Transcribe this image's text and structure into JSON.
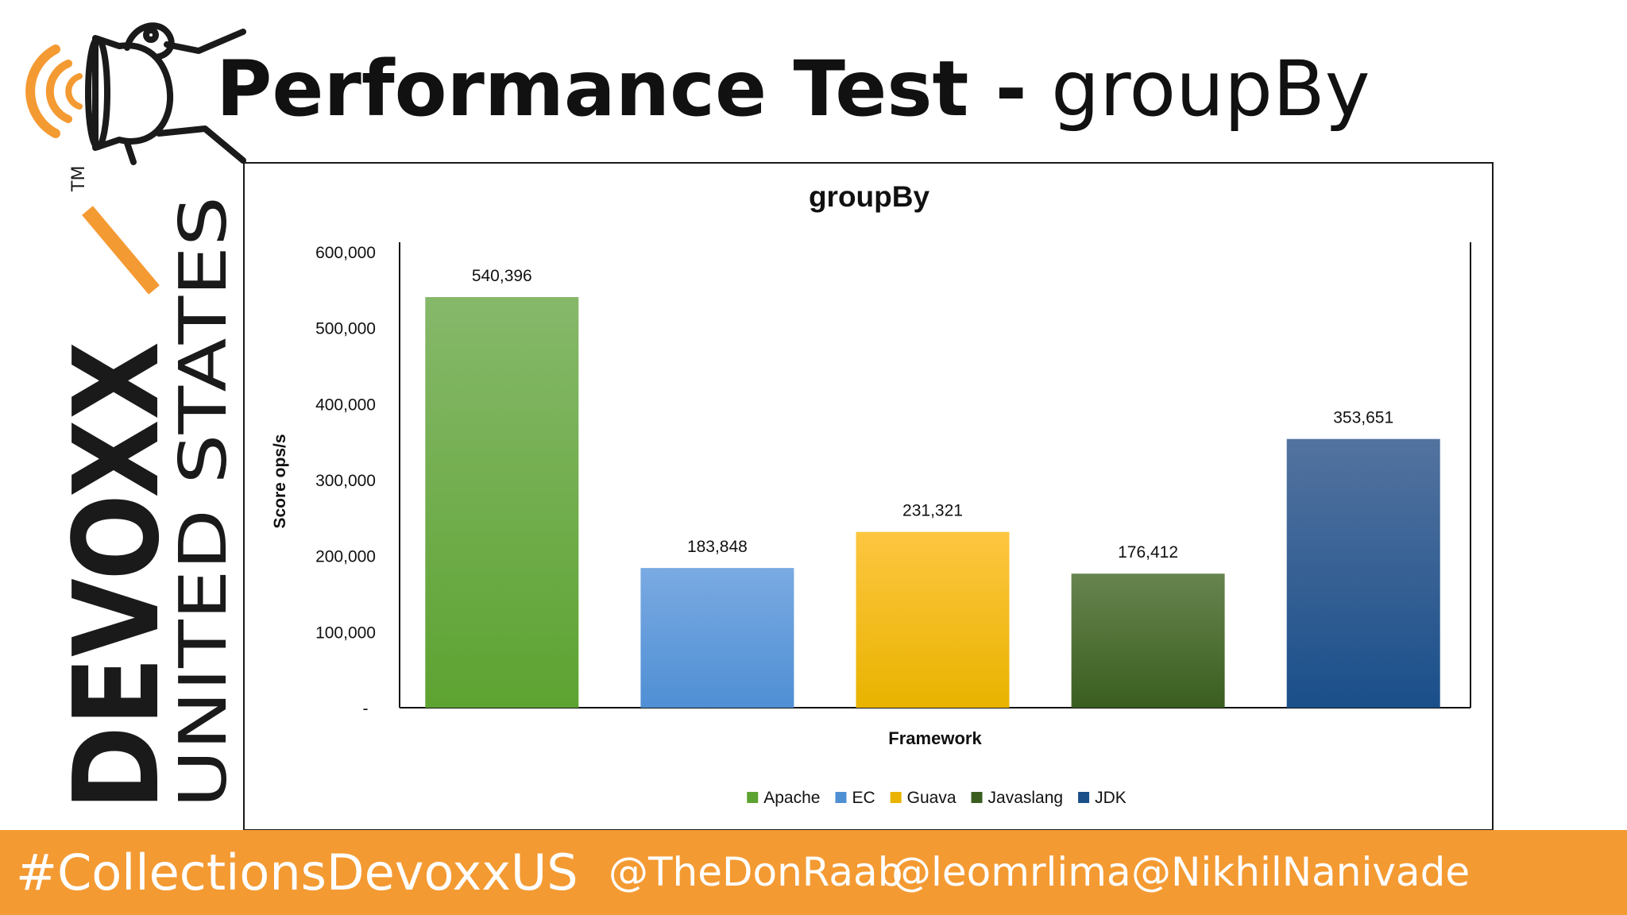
{
  "slide": {
    "title_bold": "Performance Test -",
    "title_regular": " groupBy"
  },
  "branding": {
    "vertical_large": "DEVOXX",
    "vertical_small": "UNITED STATES",
    "trademark": "TM",
    "brand_orange": "#f49a32",
    "brand_dark": "#1a1a1a"
  },
  "footer": {
    "hashtag": "#CollectionsDevoxxUS",
    "handles": [
      "@TheDonRaab",
      "@leomrlima",
      "@NikhilNanivade"
    ]
  },
  "chart_data": {
    "type": "bar",
    "title": "groupBy",
    "xlabel": "Framework",
    "ylabel": "Score ops/s",
    "ylim": [
      0,
      600000
    ],
    "yticks": [
      "-",
      "100,000",
      "200,000",
      "300,000",
      "400,000",
      "500,000",
      "600,000"
    ],
    "grid": false,
    "legend_position": "bottom",
    "series": [
      {
        "name": "Apache",
        "value": 540396,
        "label": "540,396",
        "color_top": "#86b86a",
        "color_bottom": "#5da331"
      },
      {
        "name": "EC",
        "value": 183848,
        "label": "183,848",
        "color_top": "#7aaae2",
        "color_bottom": "#4f8fd4"
      },
      {
        "name": "Guava",
        "value": 231321,
        "label": "231,321",
        "color_top": "#fdc640",
        "color_bottom": "#e9b300"
      },
      {
        "name": "Javaslang",
        "value": 176412,
        "label": "176,412",
        "color_top": "#67844f",
        "color_bottom": "#3a5e1f"
      },
      {
        "name": "JDK",
        "value": 353651,
        "label": "353,651",
        "color_top": "#53739f",
        "color_bottom": "#1a4f8a"
      }
    ]
  }
}
